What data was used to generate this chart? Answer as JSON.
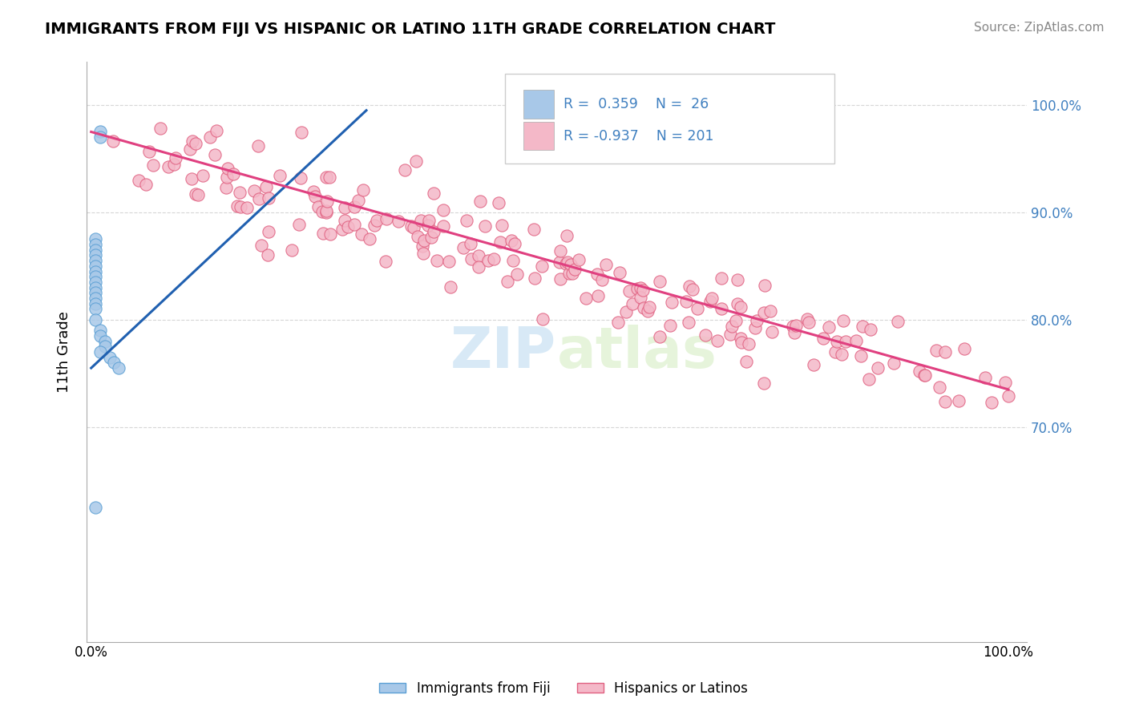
{
  "title": "IMMIGRANTS FROM FIJI VS HISPANIC OR LATINO 11TH GRADE CORRELATION CHART",
  "source_text": "Source: ZipAtlas.com",
  "ylabel": "11th Grade",
  "blue_color": "#a8c8e8",
  "blue_edge_color": "#5a9fd4",
  "pink_color": "#f4b8c8",
  "pink_edge_color": "#e06080",
  "blue_line_color": "#2060b0",
  "pink_line_color": "#e04080",
  "watermark_color": "#b8d8f0",
  "background_color": "#ffffff",
  "grid_color": "#cccccc",
  "right_tick_color": "#4080c0",
  "legend_text_color": "#4080c0",
  "right_yticks": [
    0.7,
    0.8,
    0.9,
    1.0
  ],
  "right_yticklabels": [
    "70.0%",
    "80.0%",
    "90.0%",
    "100.0%"
  ],
  "ylim": [
    0.5,
    1.04
  ],
  "xlim": [
    -0.005,
    1.02
  ],
  "blue_trend_x": [
    0.0,
    0.3
  ],
  "blue_trend_y": [
    0.755,
    0.995
  ],
  "pink_trend_x": [
    0.0,
    1.0
  ],
  "pink_trend_y": [
    0.975,
    0.735
  ],
  "blue_scatter_x": [
    0.01,
    0.01,
    0.005,
    0.005,
    0.005,
    0.005,
    0.005,
    0.005,
    0.005,
    0.005,
    0.005,
    0.005,
    0.005,
    0.005,
    0.005,
    0.005,
    0.005,
    0.01,
    0.01,
    0.015,
    0.015,
    0.01,
    0.02,
    0.025,
    0.03,
    0.005
  ],
  "blue_scatter_y": [
    0.975,
    0.97,
    0.875,
    0.87,
    0.865,
    0.86,
    0.855,
    0.85,
    0.845,
    0.84,
    0.835,
    0.83,
    0.825,
    0.82,
    0.815,
    0.81,
    0.8,
    0.79,
    0.785,
    0.78,
    0.775,
    0.77,
    0.765,
    0.76,
    0.755,
    0.625
  ],
  "pink_scatter_seed": 123,
  "pink_n": 201,
  "pink_slope": -0.245,
  "pink_intercept": 0.974,
  "pink_noise": 0.022
}
